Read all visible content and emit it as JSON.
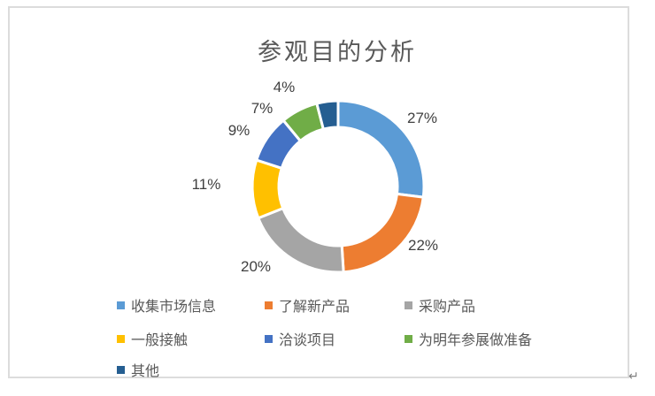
{
  "chart_data": {
    "type": "pie",
    "subtype": "doughnut",
    "title": "参观目的分析",
    "categories": [
      "收集市场信息",
      "了解新产品",
      "采购产品",
      "一般接触",
      "洽谈项目",
      "为明年参展做准备",
      "其他"
    ],
    "values": [
      27,
      22,
      20,
      11,
      9,
      7,
      4
    ],
    "labels": [
      "27%",
      "22%",
      "20%",
      "11%",
      "9%",
      "7%",
      "4%"
    ],
    "colors": [
      "#5B9BD5",
      "#ED7D31",
      "#A5A5A5",
      "#FFC000",
      "#4472C4",
      "#70AD47",
      "#255E91"
    ],
    "legend_position": "bottom",
    "start_angle_deg": -90,
    "direction": "clockwise"
  },
  "page": {
    "linebreak_mark": "↵"
  }
}
